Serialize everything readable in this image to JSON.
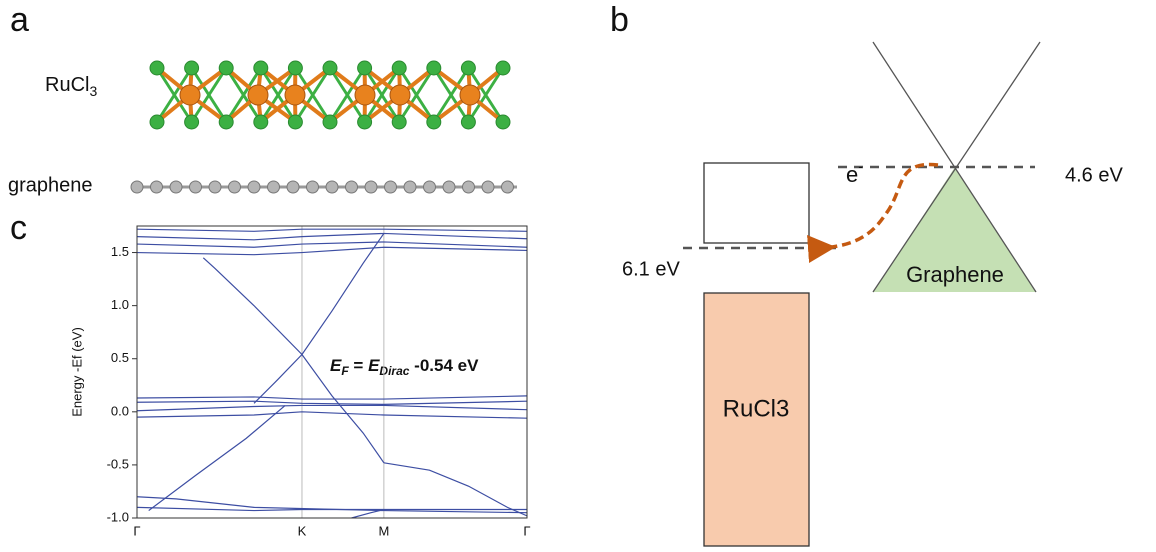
{
  "panel_labels": [
    "a",
    "b",
    "c"
  ],
  "structure": {
    "rucl3_label": {
      "text": "RuCl",
      "subscript": "3"
    },
    "graphene_label": "graphene"
  },
  "diagram": {
    "electron": {
      "text": "e",
      "superscript": "-"
    },
    "graphene_level": "4.6 eV",
    "rucl3_level": "6.1 eV",
    "graphene_label": "Graphene",
    "rucl3_label": "RuCl3"
  },
  "chart_data": {
    "type": "line",
    "ylabel": "Energy -Ef (eV)",
    "color": "#3d4ea3",
    "annotation": [
      "E",
      "F",
      " = ",
      "E",
      "Dirac",
      " -0.54 eV"
    ],
    "xlim": [
      0,
      1
    ],
    "ylim": [
      -1.0,
      1.75
    ],
    "xticks": [
      {
        "value": 0,
        "label": "Γ"
      },
      {
        "value": 0.423,
        "label": "K"
      },
      {
        "value": 0.633,
        "label": "M"
      },
      {
        "value": 1,
        "label": "Γ"
      }
    ],
    "yticks": [
      {
        "value": -1.0,
        "label": "-1.0"
      },
      -0.5,
      {
        "value": 0.0,
        "label": "0.0"
      },
      0.5,
      {
        "value": 1.0,
        "label": "1.0"
      },
      1.5
    ],
    "series": [
      {
        "x": [
          0.17,
          0.2,
          0.3,
          0.423,
          0.5,
          0.58,
          0.633
        ],
        "values": [
          1.45,
          1.35,
          1.0,
          0.54,
          0.15,
          -0.2,
          -0.48
        ]
      },
      {
        "x": [
          0.3,
          0.36,
          0.423,
          0.5,
          0.58,
          0.633
        ],
        "values": [
          0.08,
          0.3,
          0.54,
          0.95,
          1.4,
          1.68
        ]
      },
      {
        "x": [
          0.03,
          0.15,
          0.28,
          0.38
        ],
        "values": [
          -0.93,
          -0.6,
          -0.25,
          0.06
        ]
      },
      {
        "x": [
          0.633,
          0.75,
          0.85,
          0.95,
          1.0
        ],
        "values": [
          -0.48,
          -0.55,
          -0.7,
          -0.9,
          -0.98
        ]
      },
      {
        "x": [
          0.55,
          0.6,
          0.633
        ],
        "values": [
          -1.0,
          -0.95,
          -0.92
        ]
      },
      {
        "x": [
          0,
          0.3,
          0.423,
          0.633,
          1
        ],
        "values": [
          0.13,
          0.14,
          0.12,
          0.12,
          0.15
        ]
      },
      {
        "x": [
          0,
          0.3,
          0.423,
          0.633,
          1
        ],
        "values": [
          0.09,
          0.1,
          0.08,
          0.07,
          0.1
        ]
      },
      {
        "x": [
          0,
          0.3,
          0.423,
          0.633,
          1
        ],
        "values": [
          0.01,
          0.05,
          0.06,
          0.06,
          0.02
        ]
      },
      {
        "x": [
          0,
          0.3,
          0.423,
          0.633,
          1
        ],
        "values": [
          -0.05,
          -0.03,
          0.0,
          -0.03,
          -0.06
        ]
      },
      {
        "x": [
          0,
          0.3,
          0.423,
          0.633,
          1
        ],
        "values": [
          -0.9,
          -0.93,
          -0.92,
          -0.92,
          -0.92
        ]
      },
      {
        "x": [
          0,
          0.1,
          0.3,
          0.633,
          1
        ],
        "values": [
          -0.8,
          -0.82,
          -0.9,
          -0.93,
          -0.95
        ]
      },
      {
        "x": [
          0,
          0.3,
          0.423,
          0.633,
          1
        ],
        "values": [
          1.5,
          1.48,
          1.5,
          1.55,
          1.52
        ]
      },
      {
        "x": [
          0,
          0.3,
          0.423,
          0.633,
          1
        ],
        "values": [
          1.58,
          1.55,
          1.58,
          1.6,
          1.55
        ]
      },
      {
        "x": [
          0,
          0.3,
          0.423,
          0.633,
          1
        ],
        "values": [
          1.65,
          1.62,
          1.65,
          1.68,
          1.63
        ]
      },
      {
        "x": [
          0,
          0.3,
          0.423,
          0.633,
          1
        ],
        "values": [
          1.72,
          1.7,
          1.72,
          1.72,
          1.7
        ]
      }
    ]
  }
}
